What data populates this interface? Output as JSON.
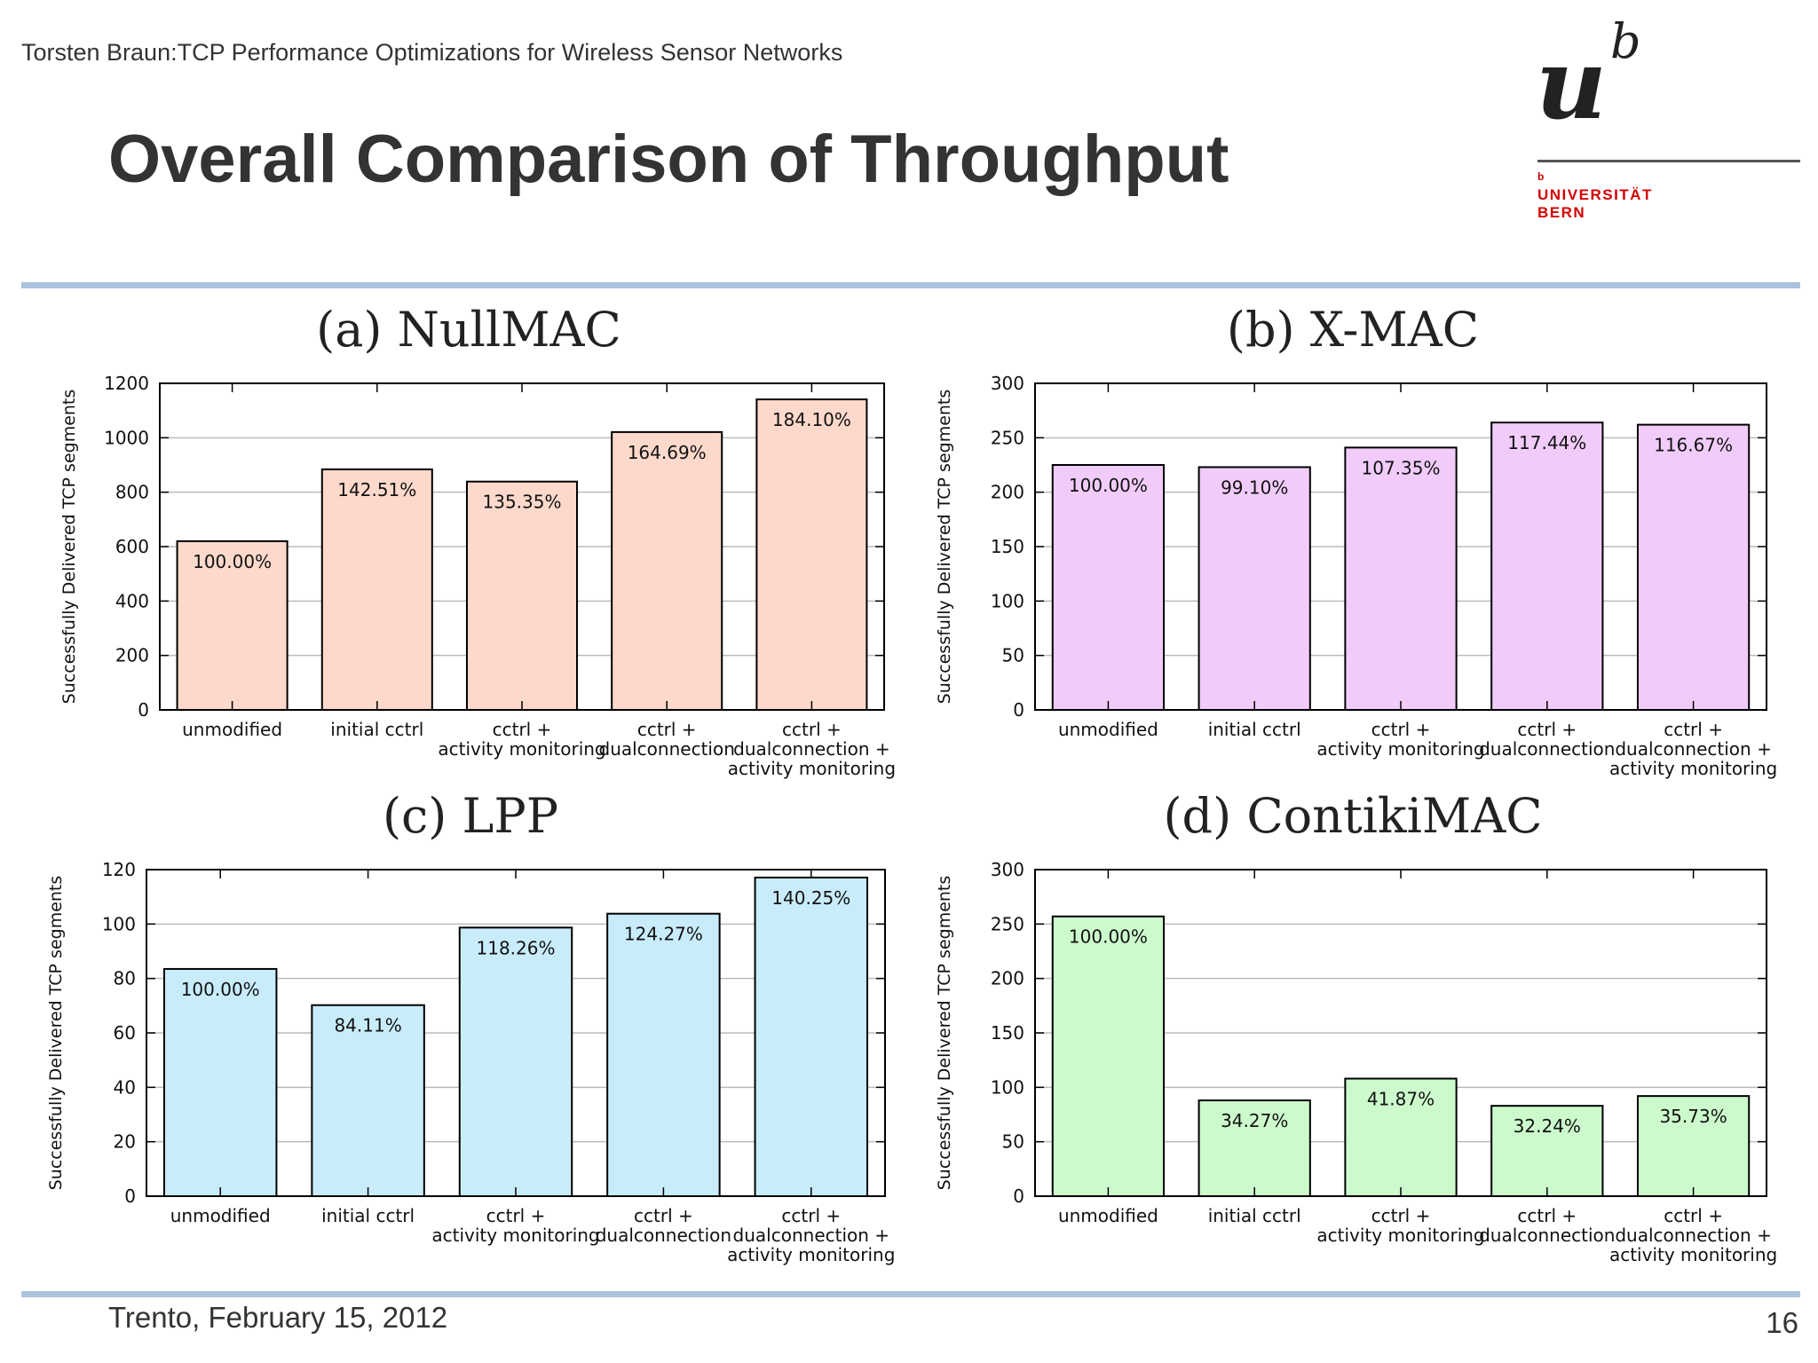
{
  "slide": {
    "header": "Torsten Braun:TCP Performance Optimizations for Wireless Sensor Networks",
    "title": "Overall Comparison of Throughput",
    "logo": {
      "b_mark": "b",
      "name_line1": "UNIVERSITÄT",
      "name_line2": "BERN",
      "wordmark_u": "u",
      "wordmark_b": "b"
    },
    "footer_date": "Trento, February 15, 2012",
    "page_number": "16"
  },
  "chart_data": [
    {
      "type": "bar",
      "title": "(a) NullMAC",
      "ylabel": "Successfully Delivered TCP segments",
      "xlabel": "",
      "ylim": [
        0,
        1200
      ],
      "yticks": [
        0,
        200,
        400,
        600,
        800,
        1000,
        1200
      ],
      "categories": [
        [
          "unmodified"
        ],
        [
          "initial cctrl"
        ],
        [
          "cctrl +",
          "activity monitoring"
        ],
        [
          "cctrl +",
          "dualconnection"
        ],
        [
          "cctrl +",
          "dualconnection +",
          "activity monitoring"
        ]
      ],
      "values": [
        620,
        884,
        839,
        1021,
        1141
      ],
      "labels": [
        "100.00%",
        "142.51%",
        "135.35%",
        "164.69%",
        "184.10%"
      ],
      "color": "#fdd9cb",
      "grid": true
    },
    {
      "type": "bar",
      "title": "(b) X-MAC",
      "ylabel": "Successfully Delivered TCP segments",
      "xlabel": "",
      "ylim": [
        0,
        300
      ],
      "yticks": [
        0,
        50,
        100,
        150,
        200,
        250,
        300
      ],
      "categories": [
        [
          "unmodified"
        ],
        [
          "initial cctrl"
        ],
        [
          "cctrl +",
          "activity monitoring"
        ],
        [
          "cctrl +",
          "dualconnection"
        ],
        [
          "cctrl +",
          "dualconnection +",
          "activity monitoring"
        ]
      ],
      "values": [
        225,
        223,
        241,
        264,
        262
      ],
      "labels": [
        "100.00%",
        "99.10%",
        "107.35%",
        "117.44%",
        "116.67%"
      ],
      "color": "#f1ccfa",
      "grid": true
    },
    {
      "type": "bar",
      "title": "(c) LPP",
      "ylabel": "Successfully Delivered TCP segments",
      "xlabel": "",
      "ylim": [
        0,
        120
      ],
      "yticks": [
        0,
        20,
        40,
        60,
        80,
        100,
        120
      ],
      "categories": [
        [
          "unmodified"
        ],
        [
          "initial cctrl"
        ],
        [
          "cctrl +",
          "activity monitoring"
        ],
        [
          "cctrl +",
          "dualconnection"
        ],
        [
          "cctrl +",
          "dualconnection +",
          "activity monitoring"
        ]
      ],
      "values": [
        83.5,
        70.2,
        98.7,
        103.8,
        117.1
      ],
      "labels": [
        "100.00%",
        "84.11%",
        "118.26%",
        "124.27%",
        "140.25%"
      ],
      "color": "#c9ecfb",
      "grid": true
    },
    {
      "type": "bar",
      "title": "(d) ContikiMAC",
      "ylabel": "Successfully Delivered TCP segments",
      "xlabel": "",
      "ylim": [
        0,
        300
      ],
      "yticks": [
        0,
        50,
        100,
        150,
        200,
        250,
        300
      ],
      "categories": [
        [
          "unmodified"
        ],
        [
          "initial cctrl"
        ],
        [
          "cctrl +",
          "activity monitoring"
        ],
        [
          "cctrl +",
          "dualconnection"
        ],
        [
          "cctrl +",
          "dualconnection +",
          "activity monitoring"
        ]
      ],
      "values": [
        257,
        88,
        108,
        83,
        92
      ],
      "labels": [
        "100.00%",
        "34.27%",
        "41.87%",
        "32.24%",
        "35.73%"
      ],
      "color": "#ccfacc",
      "grid": true
    }
  ]
}
